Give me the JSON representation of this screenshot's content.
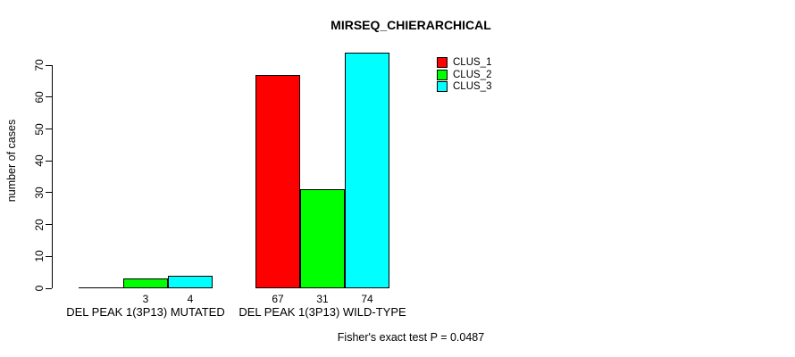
{
  "chart_data": {
    "type": "bar",
    "title": "MIRSEQ_CHIERARCHICAL",
    "xlabel": "",
    "ylabel": "number of cases",
    "categories": [
      "DEL PEAK 1(3P13) MUTATED",
      "DEL PEAK 1(3P13) WILD-TYPE"
    ],
    "series": [
      {
        "name": "CLUS_1",
        "color": "#ff0000",
        "values": [
          0,
          67
        ]
      },
      {
        "name": "CLUS_2",
        "color": "#00ff00",
        "values": [
          3,
          31
        ]
      },
      {
        "name": "CLUS_3",
        "color": "#00ffff",
        "values": [
          4,
          74
        ]
      }
    ],
    "value_labels": [
      [
        "",
        "3",
        "4"
      ],
      [
        "67",
        "31",
        "74"
      ]
    ],
    "ylim": [
      0,
      74
    ],
    "yticks": [
      0,
      10,
      20,
      30,
      40,
      50,
      60,
      70
    ],
    "grid": false,
    "legend_position": "top-right",
    "legend_entries": [
      "CLUS_1",
      "CLUS_2",
      "CLUS_3"
    ],
    "annotation": "Fisher's exact test P = 0.0487"
  }
}
